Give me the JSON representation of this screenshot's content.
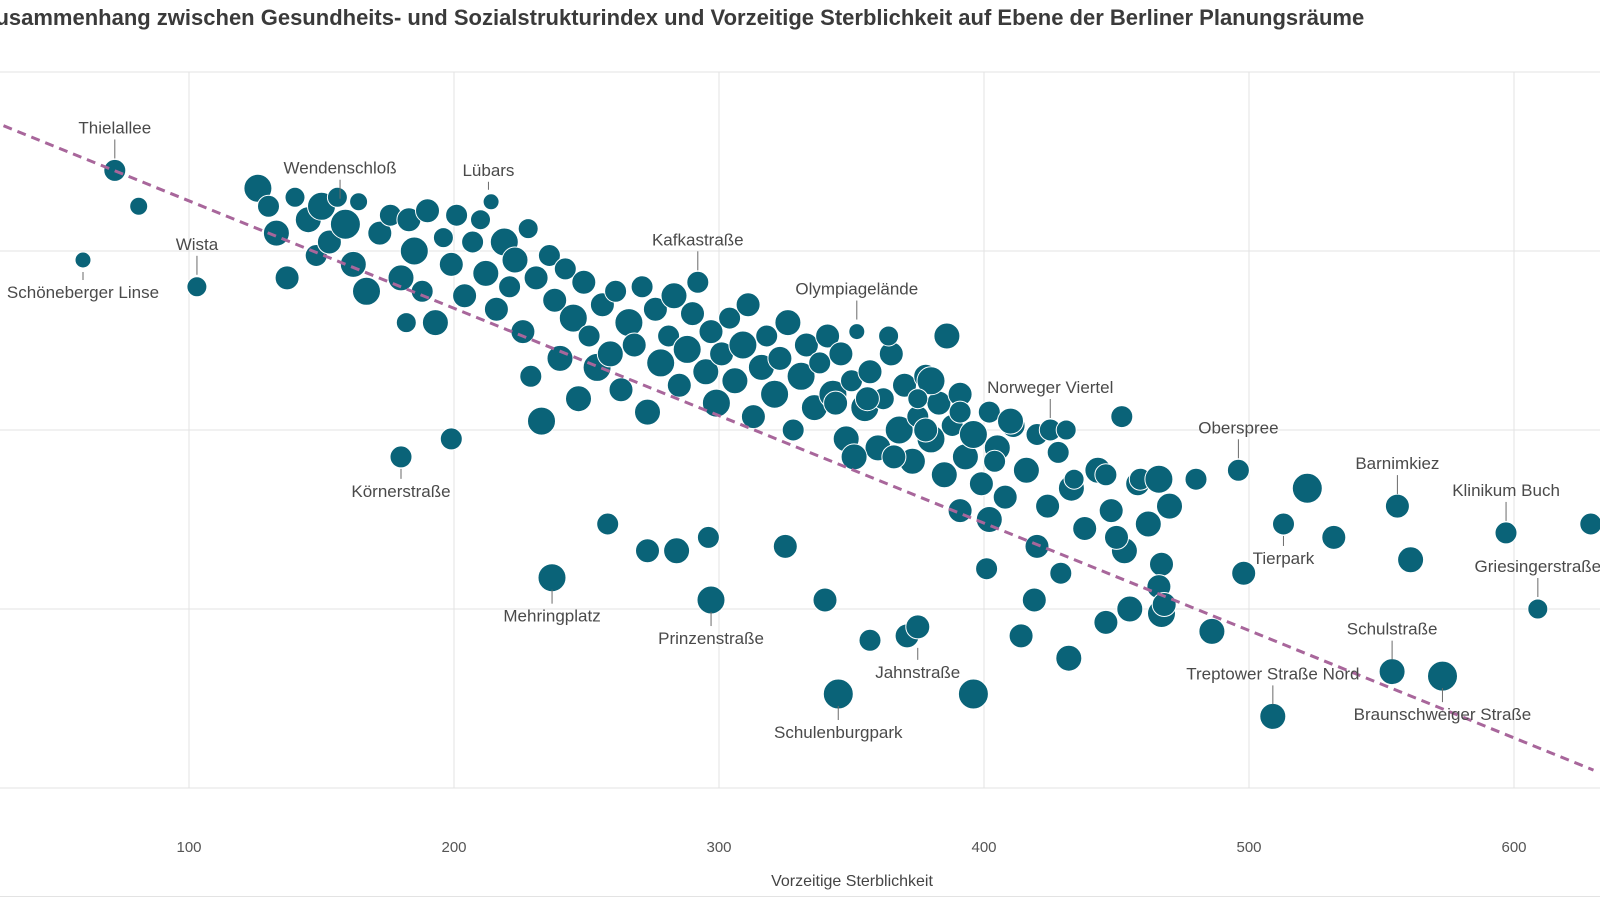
{
  "page": {
    "title": "Zusammenhang zwischen Gesundheits- und Sozialstrukturindex und Vorzeitige Sterblichkeit auf Ebene der Berliner Planungsräume"
  },
  "colors": {
    "points": "#0a6378",
    "trendline": "#a8669b",
    "grid": "#e3e3e3"
  },
  "chart_data": {
    "type": "scatter",
    "title": "Zusammenhang zwischen Gesundheits- und Sozialstrukturindex und Vorzeitige Sterblichkeit auf Ebene der Berliner Planungsräume",
    "xlabel": "Vorzeitige Sterblichkeit",
    "ylabel": "",
    "xlim": [
      30,
      630
    ],
    "ylim": [
      -4.2,
      4.0
    ],
    "x_ticks": [
      "100",
      "200",
      "300",
      "400",
      "500",
      "600"
    ],
    "grid": true,
    "trendline": {
      "from": [
        30,
        3.4
      ],
      "to": [
        630,
        -3.8
      ]
    },
    "points": [
      [
        60,
        1.9,
        8
      ],
      [
        72,
        2.9,
        11
      ],
      [
        81,
        2.5,
        9
      ],
      [
        103,
        1.6,
        10
      ],
      [
        126,
        2.7,
        14
      ],
      [
        130,
        2.5,
        11
      ],
      [
        133,
        2.2,
        13
      ],
      [
        137,
        1.7,
        12
      ],
      [
        140,
        2.6,
        10
      ],
      [
        145,
        2.35,
        13
      ],
      [
        148,
        1.95,
        11
      ],
      [
        150,
        2.5,
        14
      ],
      [
        153,
        2.1,
        12
      ],
      [
        156,
        2.6,
        10
      ],
      [
        159,
        2.3,
        15
      ],
      [
        162,
        1.85,
        13
      ],
      [
        164,
        2.55,
        9
      ],
      [
        167,
        1.55,
        14
      ],
      [
        172,
        2.2,
        12
      ],
      [
        176,
        2.4,
        11
      ],
      [
        180,
        1.7,
        13
      ],
      [
        183,
        2.35,
        12
      ],
      [
        185,
        2.0,
        14
      ],
      [
        188,
        1.55,
        11
      ],
      [
        190,
        2.45,
        12
      ],
      [
        193,
        1.2,
        13
      ],
      [
        196,
        2.15,
        10
      ],
      [
        199,
        1.85,
        12
      ],
      [
        201,
        2.4,
        11
      ],
      [
        204,
        1.5,
        12
      ],
      [
        207,
        2.1,
        11
      ],
      [
        210,
        2.35,
        10
      ],
      [
        212,
        1.75,
        13
      ],
      [
        214,
        2.55,
        8
      ],
      [
        216,
        1.35,
        12
      ],
      [
        219,
        2.1,
        14
      ],
      [
        221,
        1.6,
        11
      ],
      [
        223,
        1.9,
        13
      ],
      [
        226,
        1.1,
        12
      ],
      [
        228,
        2.25,
        10
      ],
      [
        229,
        0.6,
        11
      ],
      [
        231,
        1.7,
        12
      ],
      [
        233,
        0.1,
        14
      ],
      [
        236,
        1.95,
        11
      ],
      [
        238,
        1.45,
        12
      ],
      [
        240,
        0.8,
        13
      ],
      [
        242,
        1.8,
        11
      ],
      [
        245,
        1.25,
        14
      ],
      [
        247,
        0.35,
        13
      ],
      [
        249,
        1.65,
        12
      ],
      [
        251,
        1.05,
        11
      ],
      [
        254,
        0.7,
        14
      ],
      [
        256,
        1.4,
        12
      ],
      [
        259,
        0.85,
        13
      ],
      [
        261,
        1.55,
        11
      ],
      [
        263,
        0.45,
        12
      ],
      [
        266,
        1.2,
        14
      ],
      [
        268,
        0.95,
        12
      ],
      [
        271,
        1.6,
        11
      ],
      [
        273,
        0.2,
        13
      ],
      [
        276,
        1.35,
        12
      ],
      [
        278,
        0.75,
        14
      ],
      [
        281,
        1.05,
        11
      ],
      [
        283,
        1.5,
        13
      ],
      [
        285,
        0.5,
        12
      ],
      [
        288,
        0.9,
        14
      ],
      [
        290,
        1.3,
        12
      ],
      [
        292,
        1.65,
        11
      ],
      [
        295,
        0.65,
        13
      ],
      [
        297,
        1.1,
        12
      ],
      [
        299,
        0.3,
        14
      ],
      [
        301,
        0.85,
        12
      ],
      [
        304,
        1.25,
        11
      ],
      [
        306,
        0.55,
        13
      ],
      [
        309,
        0.95,
        14
      ],
      [
        311,
        1.4,
        12
      ],
      [
        313,
        0.15,
        12
      ],
      [
        316,
        0.7,
        13
      ],
      [
        318,
        1.05,
        11
      ],
      [
        321,
        0.4,
        14
      ],
      [
        323,
        0.8,
        12
      ],
      [
        326,
        1.2,
        13
      ],
      [
        328,
        0.0,
        11
      ],
      [
        331,
        0.6,
        14
      ],
      [
        333,
        0.95,
        12
      ],
      [
        336,
        0.25,
        13
      ],
      [
        338,
        0.75,
        11
      ],
      [
        341,
        1.05,
        12
      ],
      [
        343,
        0.4,
        14
      ],
      [
        346,
        0.85,
        12
      ],
      [
        348,
        -0.1,
        13
      ],
      [
        350,
        0.55,
        11
      ],
      [
        352,
        1.1,
        8
      ],
      [
        355,
        0.25,
        14
      ],
      [
        357,
        0.65,
        12
      ],
      [
        360,
        -0.2,
        13
      ],
      [
        362,
        0.35,
        11
      ],
      [
        365,
        0.85,
        12
      ],
      [
        368,
        0.0,
        14
      ],
      [
        370,
        0.5,
        12
      ],
      [
        373,
        -0.35,
        13
      ],
      [
        375,
        0.15,
        11
      ],
      [
        378,
        0.6,
        12
      ],
      [
        380,
        -0.1,
        14
      ],
      [
        383,
        0.3,
        12
      ],
      [
        385,
        -0.5,
        13
      ],
      [
        388,
        0.05,
        11
      ],
      [
        391,
        0.4,
        12
      ],
      [
        393,
        -0.3,
        13
      ],
      [
        396,
        -0.05,
        14
      ],
      [
        399,
        -0.6,
        12
      ],
      [
        402,
        0.2,
        11
      ],
      [
        405,
        -0.2,
        13
      ],
      [
        408,
        -0.75,
        12
      ],
      [
        411,
        0.05,
        12
      ],
      [
        416,
        -0.45,
        13
      ],
      [
        420,
        -0.05,
        11
      ],
      [
        424,
        -0.85,
        12
      ],
      [
        428,
        -0.25,
        11
      ],
      [
        433,
        -0.65,
        13
      ],
      [
        438,
        -1.1,
        12
      ],
      [
        443,
        -0.45,
        13
      ],
      [
        448,
        -0.9,
        12
      ],
      [
        453,
        -1.35,
        13
      ],
      [
        458,
        -0.6,
        12
      ],
      [
        462,
        -1.05,
        13
      ],
      [
        467,
        -1.5,
        12
      ],
      [
        470,
        -0.85,
        13
      ],
      [
        180,
        -0.3,
        11
      ],
      [
        182,
        1.2,
        10
      ],
      [
        199,
        -0.1,
        11
      ],
      [
        237,
        -1.65,
        14
      ],
      [
        258,
        -1.05,
        11
      ],
      [
        273,
        -1.35,
        12
      ],
      [
        284,
        -1.35,
        13
      ],
      [
        296,
        -1.2,
        11
      ],
      [
        297,
        -1.9,
        14
      ],
      [
        325,
        -1.3,
        12
      ],
      [
        340,
        -1.9,
        12
      ],
      [
        345,
        -2.95,
        15
      ],
      [
        357,
        -2.35,
        11
      ],
      [
        371,
        -2.3,
        12
      ],
      [
        375,
        -2.2,
        12
      ],
      [
        396,
        -2.95,
        15
      ],
      [
        401,
        -1.55,
        11
      ],
      [
        414,
        -2.3,
        12
      ],
      [
        419,
        -1.9,
        12
      ],
      [
        432,
        -2.55,
        13
      ],
      [
        446,
        -2.15,
        12
      ],
      [
        455,
        -2.0,
        13
      ],
      [
        467,
        -2.05,
        14
      ],
      [
        486,
        -2.25,
        13
      ],
      [
        498,
        -1.6,
        12
      ],
      [
        509,
        -3.2,
        13
      ],
      [
        513,
        -1.05,
        11
      ],
      [
        522,
        -0.65,
        15
      ],
      [
        532,
        -1.2,
        12
      ],
      [
        554,
        -2.7,
        13
      ],
      [
        556,
        -0.85,
        12
      ],
      [
        561,
        -1.45,
        13
      ],
      [
        573,
        -2.75,
        15
      ],
      [
        597,
        -1.15,
        11
      ],
      [
        609,
        -2.0,
        10
      ],
      [
        629,
        -1.05,
        11
      ],
      [
        356,
        0.35,
        12
      ],
      [
        380,
        0.55,
        14
      ],
      [
        378,
        0.0,
        12
      ],
      [
        391,
        0.2,
        11
      ],
      [
        410,
        0.1,
        13
      ],
      [
        425,
        0.0,
        11
      ],
      [
        434,
        -0.55,
        10
      ],
      [
        446,
        -0.5,
        11
      ],
      [
        459,
        -0.55,
        11
      ],
      [
        466,
        -0.55,
        14
      ],
      [
        480,
        -0.55,
        11
      ],
      [
        496,
        -0.45,
        11
      ],
      [
        431,
        0.0,
        10
      ],
      [
        452,
        0.15,
        11
      ],
      [
        404,
        -0.35,
        11
      ],
      [
        364,
        1.05,
        10
      ],
      [
        386,
        1.05,
        13
      ],
      [
        375,
        0.35,
        10
      ],
      [
        366,
        -0.3,
        12
      ],
      [
        344,
        0.3,
        12
      ],
      [
        351,
        -0.3,
        13
      ],
      [
        391,
        -0.9,
        12
      ],
      [
        402,
        -1.0,
        13
      ],
      [
        420,
        -1.3,
        12
      ],
      [
        429,
        -1.6,
        11
      ],
      [
        450,
        -1.2,
        12
      ],
      [
        466,
        -1.75,
        12
      ],
      [
        468,
        -1.95,
        12
      ]
    ],
    "annotations": [
      {
        "label": "Thielallee",
        "x": 72,
        "y": 2.9
      },
      {
        "label": "Wendenschloß",
        "x": 157,
        "y": 2.45
      },
      {
        "label": "Lübars",
        "x": 213,
        "y": 2.55
      },
      {
        "label": "Wista",
        "x": 103,
        "y": 1.6
      },
      {
        "label": "Schöneberger Linse",
        "x": 60,
        "y": 1.9
      },
      {
        "label": "Kafkastraße",
        "x": 292,
        "y": 1.65
      },
      {
        "label": "Olympiagelände",
        "x": 352,
        "y": 1.1
      },
      {
        "label": "Körnerstraße",
        "x": 180,
        "y": -0.3
      },
      {
        "label": "Norweger Viertel",
        "x": 425,
        "y": 0.0
      },
      {
        "label": "Oberspree",
        "x": 496,
        "y": -0.45
      },
      {
        "label": "Barnimkiez",
        "x": 556,
        "y": -0.85
      },
      {
        "label": "Klinikum Buch",
        "x": 597,
        "y": -1.15
      },
      {
        "label": "Tierpark",
        "x": 513,
        "y": -1.05
      },
      {
        "label": "Griesingerstraße",
        "x": 609,
        "y": -2.0
      },
      {
        "label": "Mehringplatz",
        "x": 237,
        "y": -1.65
      },
      {
        "label": "Prinzenstraße",
        "x": 297,
        "y": -1.9
      },
      {
        "label": "Jahnstraße",
        "x": 375,
        "y": -2.3
      },
      {
        "label": "Schulenburgpark",
        "x": 345,
        "y": -2.95
      },
      {
        "label": "Schulstraße",
        "x": 554,
        "y": -2.7
      },
      {
        "label": "Treptower Straße Nord",
        "x": 509,
        "y": -3.2
      },
      {
        "label": "Braunschweiger Straße",
        "x": 573,
        "y": -2.75
      }
    ]
  }
}
